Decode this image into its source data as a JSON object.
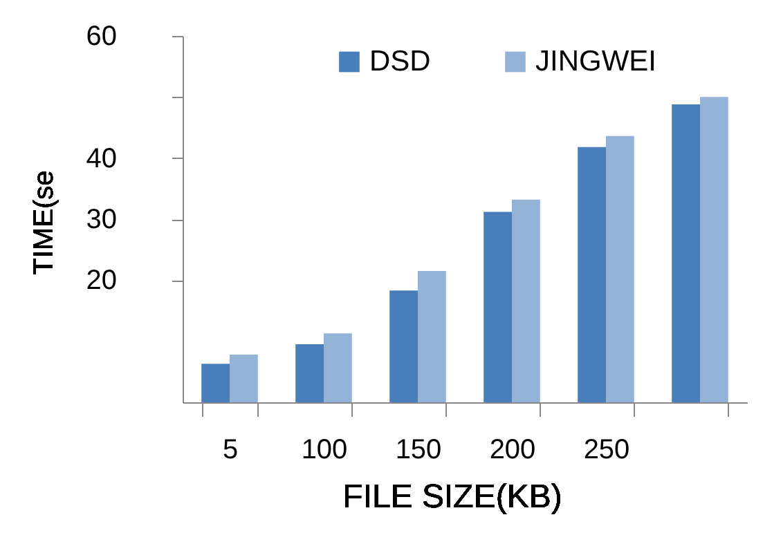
{
  "chart_data": {
    "type": "bar",
    "xlabel": "FILE SIZE(KB)",
    "ylabel": "TIME(se",
    "categories": [
      "5",
      "100",
      "150",
      "200",
      "250",
      null
    ],
    "series": [
      {
        "name": "DSD",
        "color": "#4a7ebb",
        "values": [
          6.3,
          9.5,
          18.3,
          31.2,
          41.8,
          48.8
        ]
      },
      {
        "name": "JINGWEI",
        "color": "#95b3d7",
        "values": [
          7.8,
          11.3,
          21.5,
          33.2,
          43.6,
          50.0
        ]
      }
    ],
    "ylim": [
      0,
      60
    ],
    "yticks": [
      60,
      {
        "value": 50,
        "label": null
      },
      {
        "value": 40,
        "label": "40"
      },
      {
        "value": 30,
        "label": "30"
      },
      {
        "value": 20,
        "label": "20"
      }
    ],
    "grid": false,
    "legend": "top"
  }
}
